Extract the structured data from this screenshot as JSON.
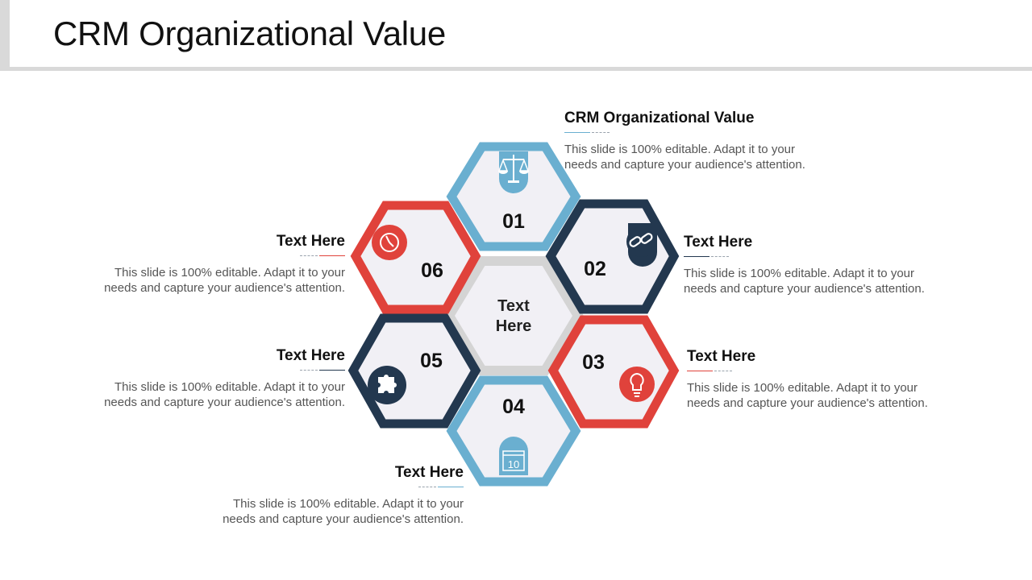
{
  "slide": {
    "title": "CRM Organizational Value"
  },
  "center": {
    "label_line1": "Text",
    "label_line2": "Here"
  },
  "colors": {
    "light_blue": "#6aafd0",
    "navy": "#23384f",
    "red": "#e0423b",
    "hex_fill": "#f1f0f5",
    "center_border": "#d4d4d4"
  },
  "hexes": [
    {
      "number": "01",
      "color": "light_blue",
      "icon": "scales-icon"
    },
    {
      "number": "02",
      "color": "navy",
      "icon": "link-icon"
    },
    {
      "number": "03",
      "color": "red",
      "icon": "lightbulb-icon"
    },
    {
      "number": "04",
      "color": "light_blue",
      "icon": "calendar-icon",
      "icon_text": "10"
    },
    {
      "number": "05",
      "color": "navy",
      "icon": "puzzle-icon"
    },
    {
      "number": "06",
      "color": "red",
      "icon": "clock-icon"
    }
  ],
  "callouts": [
    {
      "heading": "CRM Organizational  Value",
      "body_line1": "This slide is 100% editable. Adapt it to your",
      "body_line2": "needs and capture your audience's attention."
    },
    {
      "heading": "Text Here",
      "body_line1": "This slide is 100% editable. Adapt it to your",
      "body_line2": "needs and capture your audience's attention."
    },
    {
      "heading": "Text Here",
      "body_line1": "This slide is 100% editable. Adapt it to your",
      "body_line2": "needs and capture your audience's attention."
    },
    {
      "heading": "Text Here",
      "body_line1": "This slide is 100% editable. Adapt it to your",
      "body_line2": "needs and capture your audience's attention."
    },
    {
      "heading": "Text Here",
      "body_line1": "This slide is 100% editable. Adapt it to your",
      "body_line2": "needs and capture your audience's attention."
    },
    {
      "heading": "Text Here",
      "body_line1": "This slide is 100% editable. Adapt it to your",
      "body_line2": "needs and capture your audience's attention."
    }
  ]
}
